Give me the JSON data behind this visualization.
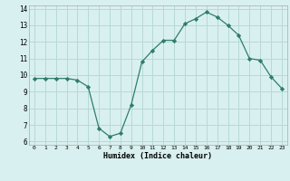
{
  "x": [
    0,
    1,
    2,
    3,
    4,
    5,
    6,
    7,
    8,
    9,
    10,
    11,
    12,
    13,
    14,
    15,
    16,
    17,
    18,
    19,
    20,
    21,
    22,
    23
  ],
  "y": [
    9.8,
    9.8,
    9.8,
    9.8,
    9.7,
    9.3,
    6.8,
    6.3,
    6.5,
    8.2,
    10.8,
    11.5,
    12.1,
    12.1,
    13.1,
    13.4,
    13.8,
    13.5,
    13.0,
    12.4,
    11.0,
    10.9,
    9.9,
    9.2
  ],
  "xlabel": "Humidex (Indice chaleur)",
  "xlim": [
    -0.5,
    23.5
  ],
  "ylim": [
    5.8,
    14.2
  ],
  "yticks": [
    6,
    7,
    8,
    9,
    10,
    11,
    12,
    13,
    14
  ],
  "xticks": [
    0,
    1,
    2,
    3,
    4,
    5,
    6,
    7,
    8,
    9,
    10,
    11,
    12,
    13,
    14,
    15,
    16,
    17,
    18,
    19,
    20,
    21,
    22,
    23
  ],
  "line_color": "#2e7d6e",
  "marker": "D",
  "marker_size": 2.2,
  "bg_color": "#d9f0f0",
  "grid_color": "#b8d8d8",
  "fig_bg": "#d9f0f0"
}
